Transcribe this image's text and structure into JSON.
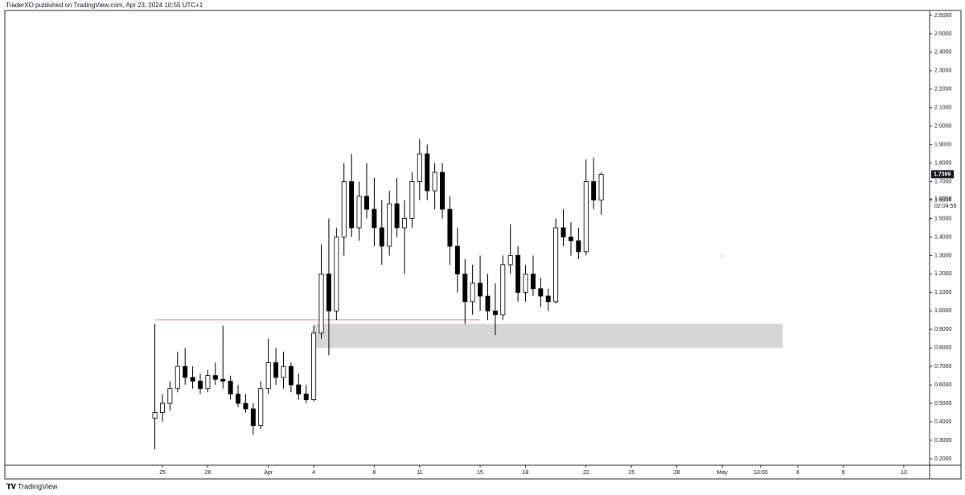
{
  "chart_data": {
    "type": "candlestick",
    "title": "TraderXO published on TradingView.com, Apr 23, 2024 10:55 UTC+1",
    "brand": "TradingView",
    "x": [
      "2024-03-24T12:00",
      "2024-03-25T00:00",
      "2024-03-25T12:00",
      "2024-03-26T00:00",
      "2024-03-26T12:00",
      "2024-03-27T00:00",
      "2024-03-27T12:00",
      "2024-03-28T00:00",
      "2024-03-28T12:00",
      "2024-03-29T00:00",
      "2024-03-29T12:00",
      "2024-03-30T00:00",
      "2024-03-30T12:00",
      "2024-03-31T00:00",
      "2024-03-31T12:00",
      "2024-04-01T00:00",
      "2024-04-01T12:00",
      "2024-04-02T00:00",
      "2024-04-02T12:00",
      "2024-04-03T00:00",
      "2024-04-03T12:00",
      "2024-04-04T00:00",
      "2024-04-04T12:00",
      "2024-04-05T00:00",
      "2024-04-05T12:00",
      "2024-04-06T00:00",
      "2024-04-06T12:00",
      "2024-04-07T00:00",
      "2024-04-07T12:00",
      "2024-04-08T00:00",
      "2024-04-08T12:00",
      "2024-04-09T00:00",
      "2024-04-09T12:00",
      "2024-04-10T00:00",
      "2024-04-10T12:00",
      "2024-04-11T00:00",
      "2024-04-11T12:00",
      "2024-04-12T00:00",
      "2024-04-12T12:00",
      "2024-04-13T00:00",
      "2024-04-13T12:00",
      "2024-04-14T00:00",
      "2024-04-14T12:00",
      "2024-04-15T00:00",
      "2024-04-15T12:00",
      "2024-04-16T00:00",
      "2024-04-16T12:00",
      "2024-04-17T00:00",
      "2024-04-17T12:00",
      "2024-04-18T00:00",
      "2024-04-18T12:00",
      "2024-04-19T00:00",
      "2024-04-19T12:00",
      "2024-04-20T00:00",
      "2024-04-20T12:00",
      "2024-04-21T00:00",
      "2024-04-21T12:00",
      "2024-04-22T00:00",
      "2024-04-22T12:00",
      "2024-04-23T00:00"
    ],
    "open": [
      0.42,
      0.45,
      0.5,
      0.58,
      0.7,
      0.64,
      0.62,
      0.58,
      0.65,
      0.63,
      0.62,
      0.55,
      0.5,
      0.47,
      0.38,
      0.58,
      0.72,
      0.64,
      0.7,
      0.6,
      0.55,
      0.52,
      0.88,
      1.2,
      1.0,
      1.4,
      1.7,
      1.45,
      1.62,
      1.55,
      1.45,
      1.35,
      1.58,
      1.45,
      1.5,
      1.7,
      1.85,
      1.65,
      1.75,
      1.55,
      1.35,
      1.2,
      1.05,
      1.15,
      1.08,
      1.0,
      0.98,
      1.25,
      1.3,
      1.1,
      1.2,
      1.12,
      1.08,
      1.05,
      1.45,
      1.4,
      1.38,
      1.32,
      1.7,
      1.6
    ],
    "high": [
      0.93,
      0.55,
      0.62,
      0.78,
      0.8,
      0.7,
      0.66,
      0.68,
      0.72,
      0.92,
      0.65,
      0.6,
      0.55,
      0.5,
      0.62,
      0.85,
      0.8,
      0.78,
      0.72,
      0.66,
      0.6,
      0.92,
      1.36,
      1.5,
      1.45,
      1.8,
      1.85,
      1.7,
      1.8,
      1.72,
      1.6,
      1.65,
      1.72,
      1.6,
      1.75,
      1.93,
      1.9,
      1.8,
      1.8,
      1.62,
      1.45,
      1.28,
      1.25,
      1.3,
      1.2,
      1.15,
      1.3,
      1.47,
      1.35,
      1.25,
      1.3,
      1.18,
      1.12,
      1.5,
      1.55,
      1.48,
      1.45,
      1.82,
      1.83,
      1.75
    ],
    "low": [
      0.25,
      0.4,
      0.46,
      0.56,
      0.6,
      0.58,
      0.55,
      0.56,
      0.6,
      0.58,
      0.52,
      0.48,
      0.45,
      0.33,
      0.36,
      0.55,
      0.6,
      0.58,
      0.56,
      0.52,
      0.5,
      0.51,
      0.85,
      0.76,
      0.95,
      1.3,
      1.4,
      1.38,
      1.5,
      1.35,
      1.25,
      1.3,
      1.4,
      1.2,
      1.45,
      1.6,
      1.6,
      1.55,
      1.5,
      1.25,
      1.1,
      0.93,
      0.98,
      1.0,
      0.95,
      0.87,
      0.95,
      1.2,
      1.05,
      1.05,
      1.08,
      1.02,
      1.0,
      1.04,
      1.35,
      1.3,
      1.28,
      1.3,
      1.55,
      1.52
    ],
    "close": [
      0.45,
      0.5,
      0.58,
      0.7,
      0.64,
      0.62,
      0.58,
      0.65,
      0.63,
      0.62,
      0.55,
      0.5,
      0.47,
      0.38,
      0.58,
      0.72,
      0.64,
      0.7,
      0.6,
      0.55,
      0.52,
      0.88,
      1.2,
      1.0,
      1.4,
      1.7,
      1.45,
      1.62,
      1.55,
      1.45,
      1.35,
      1.58,
      1.45,
      1.5,
      1.7,
      1.85,
      1.65,
      1.75,
      1.55,
      1.35,
      1.2,
      1.05,
      1.15,
      1.08,
      1.0,
      0.98,
      1.25,
      1.3,
      1.1,
      1.2,
      1.12,
      1.08,
      1.05,
      1.45,
      1.4,
      1.38,
      1.32,
      1.7,
      1.6,
      1.7399
    ],
    "up_color": "#ffffff",
    "down_color": "#000000",
    "last_price": {
      "value": 1.7399,
      "label": "1.7399"
    },
    "second_price": {
      "value": 1.6059,
      "label": "1.6059"
    },
    "countdown": "02:04:59",
    "zone": {
      "x": [
        "2024-04-04T00:00",
        "2024-05-05T00:00"
      ],
      "y": [
        0.8,
        0.93
      ],
      "color": "#d6d6d9"
    },
    "level": {
      "value": 0.952,
      "x": [
        "2024-03-24T12:00",
        "2024-04-15T00:00"
      ],
      "color": "#e07a8c"
    },
    "xlim": [
      "2024-03-14T14:00",
      "2024-05-14T17:00"
    ],
    "ylim": [
      0.165,
      2.626
    ],
    "xticks": [
      {
        "value": "2024-03-25T00:00",
        "label": "25"
      },
      {
        "value": "2024-03-28T00:00",
        "label": "28"
      },
      {
        "value": "2024-04-01T00:00",
        "label": "Apr"
      },
      {
        "value": "2024-04-04T00:00",
        "label": "4"
      },
      {
        "value": "2024-04-08T00:00",
        "label": "8"
      },
      {
        "value": "2024-04-11T00:00",
        "label": "11"
      },
      {
        "value": "2024-04-15T00:00",
        "label": "15"
      },
      {
        "value": "2024-04-18T00:00",
        "label": "18"
      },
      {
        "value": "2024-04-22T00:00",
        "label": "22"
      },
      {
        "value": "2024-04-25T00:00",
        "label": "25"
      },
      {
        "value": "2024-04-28T00:00",
        "label": "28"
      },
      {
        "value": "2024-05-01T00:00",
        "label": "May"
      },
      {
        "value": "2024-05-03T13:00",
        "label": "13:00"
      },
      {
        "value": "2024-05-06T00:00",
        "label": "6"
      },
      {
        "value": "2024-05-09T00:00",
        "label": "9"
      },
      {
        "value": "2024-05-13T00:00",
        "label": "13"
      }
    ],
    "yticks": [
      {
        "value": 0.2,
        "label": "0.2000"
      },
      {
        "value": 0.3,
        "label": "0.3000"
      },
      {
        "value": 0.4,
        "label": "0.4000"
      },
      {
        "value": 0.5,
        "label": "0.5000"
      },
      {
        "value": 0.6,
        "label": "0.6000"
      },
      {
        "value": 0.7,
        "label": "0.7000"
      },
      {
        "value": 0.8,
        "label": "0.8000"
      },
      {
        "value": 0.9,
        "label": "0.9000"
      },
      {
        "value": 1.0,
        "label": "1.0000"
      },
      {
        "value": 1.1,
        "label": "1.1000"
      },
      {
        "value": 1.2,
        "label": "1.2000"
      },
      {
        "value": 1.3,
        "label": "1.3000"
      },
      {
        "value": 1.4,
        "label": "1.4000"
      },
      {
        "value": 1.5,
        "label": "1.5000"
      },
      {
        "value": 1.6,
        "label": "1.6000"
      },
      {
        "value": 1.7,
        "label": "1.7000"
      },
      {
        "value": 1.8,
        "label": "1.8000"
      },
      {
        "value": 1.9,
        "label": "1.9000"
      },
      {
        "value": 2.0,
        "label": "2.0000"
      },
      {
        "value": 2.1,
        "label": "2.1000"
      },
      {
        "value": 2.2,
        "label": "2.2000"
      },
      {
        "value": 2.3,
        "label": "2.3000"
      },
      {
        "value": 2.4,
        "label": "2.4000"
      },
      {
        "value": 2.5,
        "label": "2.5000"
      },
      {
        "value": 2.6,
        "label": "2.6000"
      }
    ],
    "grid": false
  }
}
